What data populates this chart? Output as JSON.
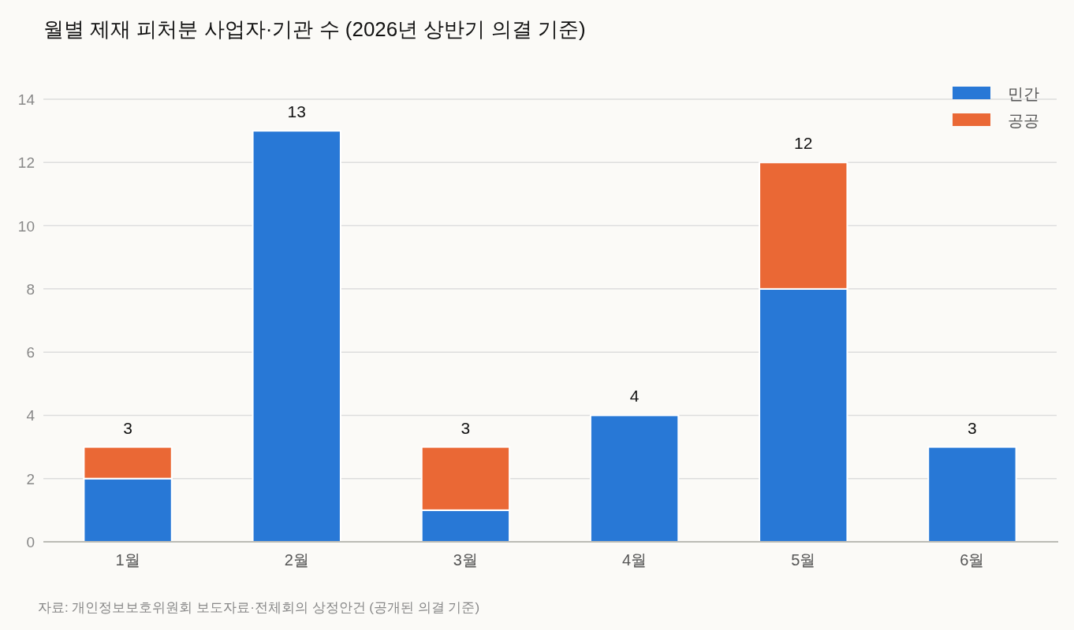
{
  "chart_data": {
    "type": "bar",
    "title": "월별 제재 피처분 사업자·기관 수 (2026년 상반기 의결 기준)",
    "categories": [
      "1월",
      "2월",
      "3월",
      "4월",
      "5월",
      "6월"
    ],
    "series": [
      {
        "name": "민간",
        "color": "#2878d6",
        "values": [
          2,
          13,
          1,
          4,
          8,
          3
        ]
      },
      {
        "name": "공공",
        "color": "#ea6835",
        "values": [
          1,
          null,
          2,
          null,
          4,
          null
        ]
      }
    ],
    "stacked": true,
    "ylim": [
      0,
      14
    ],
    "yticks": [
      0,
      2,
      4,
      6,
      8,
      10,
      12,
      14
    ],
    "grid": "y",
    "legend": "top right",
    "totals": [
      "3",
      "13",
      "3",
      "4",
      "12",
      "3"
    ],
    "annotations": [
      "자료: 개인정보보호위원회 보도자료·전체회의 상정안건 (공개된 의결 기준)"
    ]
  }
}
